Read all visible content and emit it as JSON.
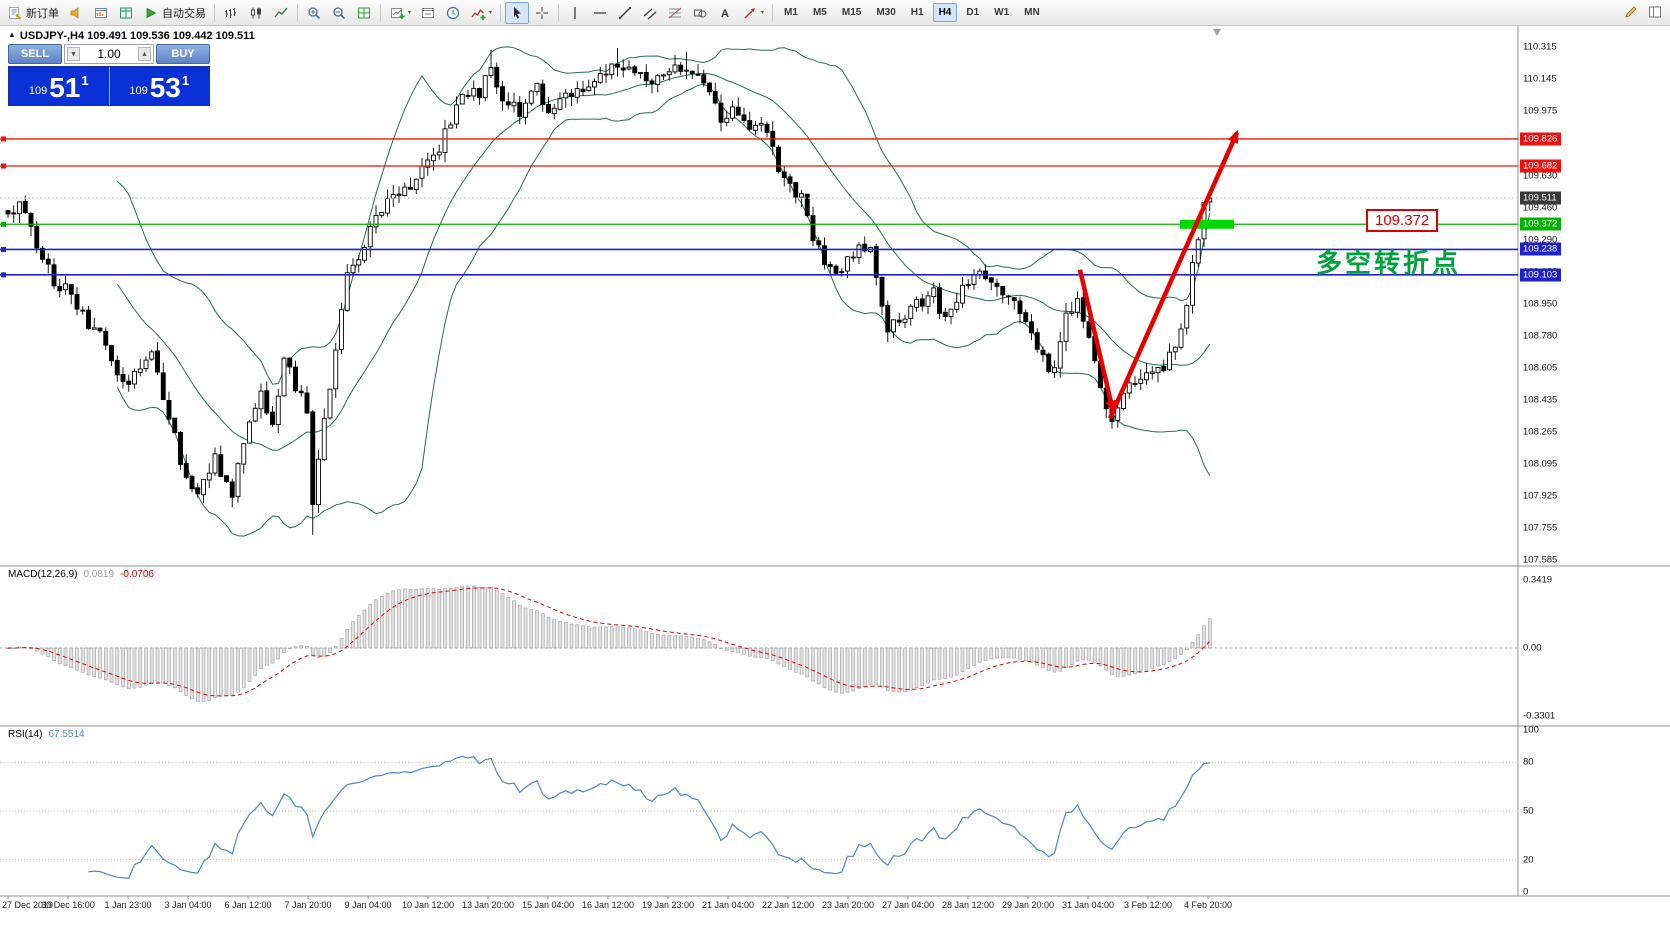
{
  "toolbar": {
    "items": [
      {
        "name": "new-order",
        "icon": "new-order",
        "label": "新订单"
      },
      {
        "name": "alerts",
        "icon": "horn"
      },
      {
        "name": "charts-profile",
        "icon": "profile"
      },
      {
        "name": "market-watch",
        "icon": "market"
      },
      {
        "name": "autotrading",
        "icon": "autotrading",
        "label": "自动交易"
      },
      {
        "sep": true
      },
      {
        "name": "bar-chart",
        "icon": "bar-chart"
      },
      {
        "name": "candlestick-chart",
        "icon": "candle-chart"
      },
      {
        "name": "line-chart",
        "icon": "line-chart"
      },
      {
        "sep": true
      },
      {
        "name": "zoom-in",
        "icon": "zoom-in"
      },
      {
        "name": "zoom-out",
        "icon": "zoom-out"
      },
      {
        "name": "tile-windows",
        "icon": "tile"
      },
      {
        "sep": true
      },
      {
        "name": "new-chart",
        "icon": "new-chart",
        "caret": true
      },
      {
        "name": "chart-window",
        "icon": "window"
      },
      {
        "name": "auto-scroll",
        "icon": "clock"
      },
      {
        "name": "indicators",
        "icon": "indicators",
        "caret": true
      },
      {
        "sep": true
      },
      {
        "name": "cursor",
        "icon": "cursor",
        "pressed": true
      },
      {
        "name": "crosshair",
        "icon": "crosshair"
      },
      {
        "sep": true
      },
      {
        "name": "vertical-line",
        "icon": "vline"
      },
      {
        "name": "horizontal-line",
        "icon": "hline"
      },
      {
        "name": "trendline",
        "icon": "tline"
      },
      {
        "name": "equidistant-channel",
        "icon": "channel"
      },
      {
        "name": "fibonacci",
        "icon": "fibo"
      },
      {
        "name": "shapes",
        "icon": "shapes"
      },
      {
        "name": "text-label",
        "icon": "text"
      },
      {
        "name": "arrows-tool",
        "icon": "arrows",
        "caret": true
      },
      {
        "sep": true
      },
      {
        "tf": "M1"
      },
      {
        "tf": "M5"
      },
      {
        "tf": "M15"
      },
      {
        "tf": "M30"
      },
      {
        "tf": "H1"
      },
      {
        "tf": "H4"
      },
      {
        "tf": "D1"
      },
      {
        "tf": "W1"
      },
      {
        "tf": "MN"
      }
    ],
    "right_items": [
      {
        "name": "edit-toolbar",
        "icon": "pencil"
      },
      {
        "name": "dock-panel",
        "icon": "layout"
      }
    ],
    "active_timeframe": "H4"
  },
  "glyphs": {
    "triangle_up": "▲",
    "spinner_up": "▲",
    "spinner_down": "▼",
    "caret_down": "▾"
  },
  "chart": {
    "title_line": "USDJPY-,H4  109.491 109.536 109.442 109.511"
  },
  "trade_panel": {
    "sell_label": "SELL",
    "buy_label": "BUY",
    "volume": "1.00",
    "sell_price": {
      "prefix": "109",
      "big": "51",
      "sup": "1"
    },
    "buy_price": {
      "prefix": "109",
      "big": "53",
      "sup": "1"
    }
  },
  "levels": [
    {
      "price": 109.826,
      "color": "#ee1111",
      "width": 1.3
    },
    {
      "price": 109.682,
      "color": "#ee1111",
      "width": 1.3
    },
    {
      "price": 109.372,
      "color": "#00b300",
      "width": 1.3
    },
    {
      "price": 109.238,
      "color": "#2020cc",
      "width": 1.6
    },
    {
      "price": 109.103,
      "color": "#2020cc",
      "width": 1.6
    }
  ],
  "bid": {
    "price": 109.511
  },
  "annotations": {
    "price_label": "109.372",
    "turning_point_text": "多空转折点",
    "support_bar_price": 109.372
  },
  "price_axis": [
    "110.315",
    "110.145",
    "109.975",
    "109.805",
    "109.630",
    "109.460",
    "109.290",
    "109.120",
    "108.950",
    "108.780",
    "108.605",
    "108.435",
    "108.265",
    "108.095",
    "107.925",
    "107.755",
    "107.585"
  ],
  "macd": {
    "name": "MACD(12,26,9)",
    "main_value": "0.0819",
    "signal_value": "-0.0706",
    "axis": [
      "0.3419",
      "0.00",
      "-0.3301"
    ]
  },
  "rsi": {
    "name": "RSI(14)",
    "value": "67.5514",
    "axis": [
      "100",
      "80",
      "50",
      "20",
      "0"
    ],
    "levels": [
      80,
      50,
      20
    ]
  },
  "time_axis": [
    "27 Dec 2019",
    "30 Dec 16:00",
    "1 Jan 23:00",
    "3 Jan 04:00",
    "6 Jan 12:00",
    "7 Jan 20:00",
    "9 Jan 04:00",
    "10 Jan 12:00",
    "13 Jan 20:00",
    "15 Jan 04:00",
    "16 Jan 12:00",
    "19 Jan 23:00",
    "21 Jan 04:00",
    "22 Jan 12:00",
    "23 Jan 20:00",
    "27 Jan 04:00",
    "28 Jan 12:00",
    "29 Jan 20:00",
    "31 Jan 04:00",
    "3 Feb 12:00",
    "4 Feb 20:00"
  ],
  "colors": {
    "accent_blue": "#0a31d8",
    "level_red": "#ee1111",
    "level_green": "#00b300",
    "level_blue": "#2020cc",
    "bid_tag_bg": "#3a3a3a",
    "arrow_red": "#e80000",
    "support_bar_green": "#00d800",
    "cn_text_green": "#00a13a",
    "annotation_red": "#dd0000",
    "bollinger": "#266e4e",
    "rsi_line": "#4e86c8",
    "macd_signal": "#dd0000",
    "macd_histogram": "#e2e2e2"
  },
  "chart_data": {
    "type": "candlestick",
    "symbol": "USDJPY-",
    "timeframe": "H4",
    "ohlc_current": {
      "open": 109.491,
      "high": 109.536,
      "low": 109.442,
      "close": 109.511
    },
    "visible_price_range": [
      107.52,
      110.4
    ],
    "candle_count": 210,
    "price_waypoints": [
      [
        0,
        109.42
      ],
      [
        2,
        109.5
      ],
      [
        5,
        109.28
      ],
      [
        8,
        109.05
      ],
      [
        11,
        109.02
      ],
      [
        13,
        108.88
      ],
      [
        16,
        108.78
      ],
      [
        20,
        108.52
      ],
      [
        23,
        108.58
      ],
      [
        25,
        108.7
      ],
      [
        27,
        108.45
      ],
      [
        31,
        108.02
      ],
      [
        33,
        107.95
      ],
      [
        36,
        108.12
      ],
      [
        39,
        107.92
      ],
      [
        41,
        108.22
      ],
      [
        44,
        108.48
      ],
      [
        46,
        108.3
      ],
      [
        48,
        108.65
      ],
      [
        50,
        108.52
      ],
      [
        52,
        108.4
      ],
      [
        53,
        107.88
      ],
      [
        54,
        108.15
      ],
      [
        56,
        108.5
      ],
      [
        59,
        109.12
      ],
      [
        61,
        109.2
      ],
      [
        64,
        109.42
      ],
      [
        66,
        109.48
      ],
      [
        69,
        109.55
      ],
      [
        72,
        109.65
      ],
      [
        74,
        109.72
      ],
      [
        77,
        109.92
      ],
      [
        79,
        110.05
      ],
      [
        82,
        110.08
      ],
      [
        84,
        110.18
      ],
      [
        86,
        110.02
      ],
      [
        89,
        109.98
      ],
      [
        92,
        110.1
      ],
      [
        94,
        109.94
      ],
      [
        97,
        110.05
      ],
      [
        99,
        110.08
      ],
      [
        103,
        110.15
      ],
      [
        106,
        110.22
      ],
      [
        110,
        110.18
      ],
      [
        112,
        110.12
      ],
      [
        115,
        110.18
      ],
      [
        118,
        110.22
      ],
      [
        120,
        110.15
      ],
      [
        122,
        110.05
      ],
      [
        124,
        109.92
      ],
      [
        126,
        110.0
      ],
      [
        129,
        109.85
      ],
      [
        131,
        109.9
      ],
      [
        134,
        109.68
      ],
      [
        136,
        109.58
      ],
      [
        138,
        109.52
      ],
      [
        140,
        109.32
      ],
      [
        142,
        109.18
      ],
      [
        144,
        109.08
      ],
      [
        147,
        109.22
      ],
      [
        150,
        109.28
      ],
      [
        151,
        109.12
      ],
      [
        153,
        108.82
      ],
      [
        156,
        108.88
      ],
      [
        158,
        108.95
      ],
      [
        161,
        109.0
      ],
      [
        163,
        108.85
      ],
      [
        166,
        109.05
      ],
      [
        169,
        109.1
      ],
      [
        171,
        109.05
      ],
      [
        174,
        108.98
      ],
      [
        177,
        108.88
      ],
      [
        179,
        108.68
      ],
      [
        182,
        108.58
      ],
      [
        184,
        108.88
      ],
      [
        186,
        109.0
      ],
      [
        189,
        108.62
      ],
      [
        191,
        108.42
      ],
      [
        192,
        108.32
      ],
      [
        194,
        108.48
      ],
      [
        197,
        108.55
      ],
      [
        199,
        108.62
      ],
      [
        200,
        108.58
      ],
      [
        203,
        108.72
      ],
      [
        205,
        108.95
      ],
      [
        206,
        109.15
      ],
      [
        208,
        109.4
      ],
      [
        209,
        109.51
      ]
    ],
    "wick_events": [
      {
        "i": 53,
        "low": 107.72
      },
      {
        "i": 84,
        "high": 110.3
      },
      {
        "i": 106,
        "high": 110.31
      },
      {
        "i": 118,
        "high": 110.29
      }
    ],
    "overlays": {
      "bollinger": {
        "period": 20,
        "deviation": 2,
        "color": "#266e4e"
      }
    },
    "indicators": [
      {
        "name": "MACD",
        "params": "12,26,9",
        "main": 0.0819,
        "signal": -0.0706,
        "axis_range": [
          -0.3301,
          0.3419
        ]
      },
      {
        "name": "RSI",
        "params": "14",
        "value": 67.5514,
        "levels": [
          20,
          50,
          80
        ]
      }
    ]
  }
}
